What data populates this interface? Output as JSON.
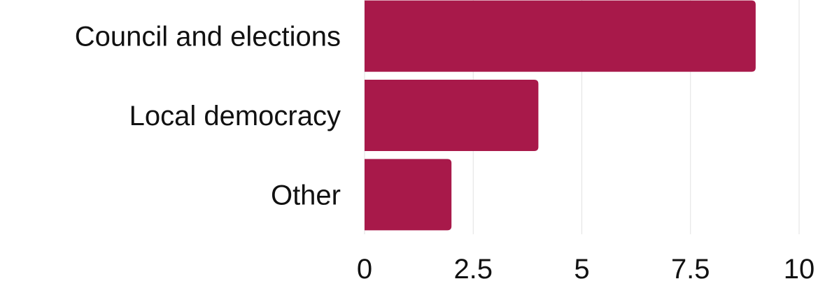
{
  "chart_data": {
    "type": "bar",
    "orientation": "horizontal",
    "categories": [
      "Council and elections",
      "Local democracy",
      "Other"
    ],
    "values": [
      9,
      4,
      2
    ],
    "xlim": [
      0,
      10
    ],
    "xticks": [
      0,
      2.5,
      5,
      7.5,
      10
    ],
    "xtick_labels": [
      "0",
      "2.5",
      "5",
      "7.5",
      "10"
    ],
    "grid": "vertical",
    "colors": {
      "bar": "#a8194a",
      "grid": "#e2e2e2",
      "text": "#111111"
    }
  }
}
